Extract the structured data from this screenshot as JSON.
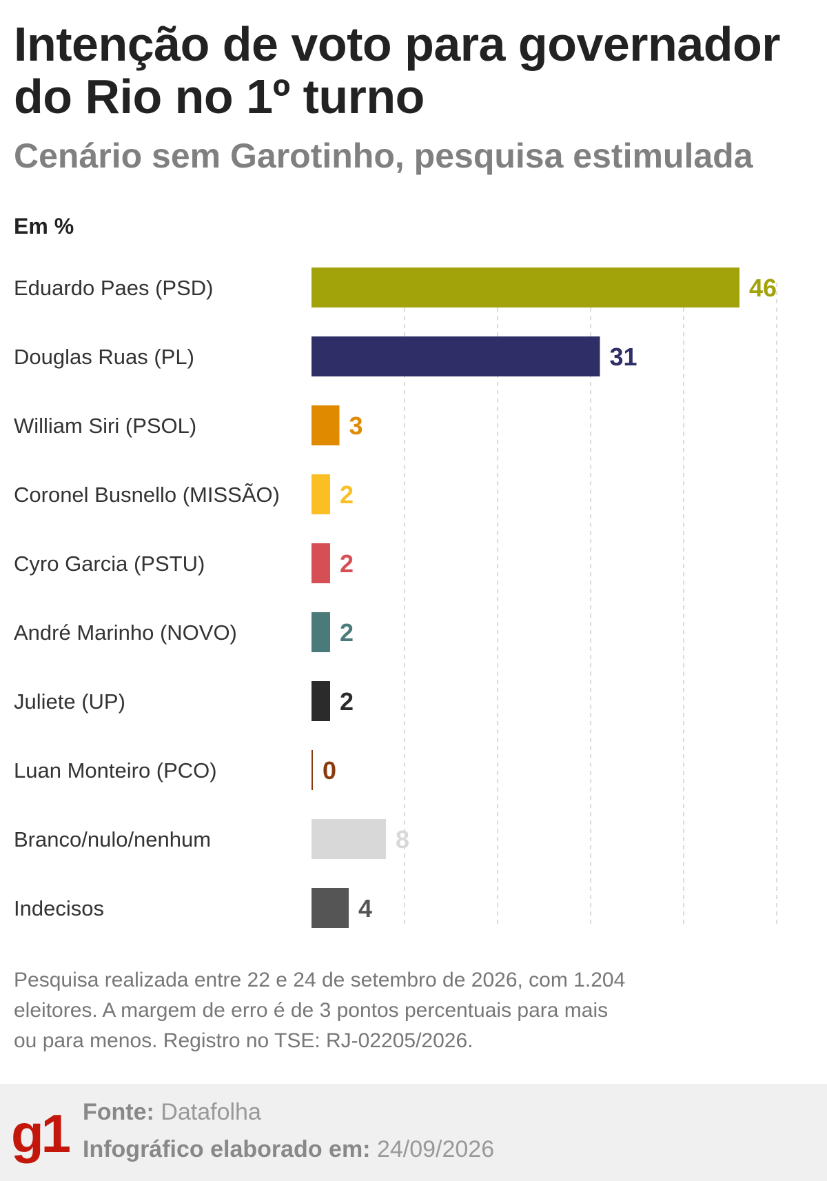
{
  "title": "Intenção de voto para governador do Rio no 1º turno",
  "subtitle": "Cenário sem Garotinho, pesquisa estimulada",
  "unit_label": "Em %",
  "chart_data": {
    "type": "bar",
    "orientation": "horizontal",
    "title": "Intenção de voto para governador do Rio no 1º turno",
    "subtitle": "Cenário sem Garotinho, pesquisa estimulada",
    "ylabel": "Em %",
    "categories": [
      "Eduardo Paes (PSD)",
      "Douglas Ruas (PL)",
      "William Siri (PSOL)",
      "Coronel Busnello (MISSÃO)",
      "Cyro Garcia (PSTU)",
      "André Marinho (NOVO)",
      "Juliete (UP)",
      "Luan Monteiro (PCO)",
      "Branco/nulo/nenhum",
      "Indecisos"
    ],
    "values": [
      46,
      31,
      3,
      2,
      2,
      2,
      2,
      0,
      8,
      4
    ],
    "colors": [
      "#a2a20a",
      "#2f2e66",
      "#e08a00",
      "#fbbf24",
      "#d64f55",
      "#4a7a7a",
      "#2b2b2b",
      "#8a3a0f",
      "#d8d8d8",
      "#555555"
    ],
    "xlim": [
      0,
      50
    ],
    "grid": true,
    "data_labels": true
  },
  "note": "Pesquisa realizada entre 22 e 24 de setembro de 2026, com 1.204 eleitores. A margem de erro é de 3 pontos percentuais para mais ou para menos. Registro no TSE: RJ-02205/2026.",
  "footer": {
    "logo_text": "g1",
    "source_label": "Fonte:",
    "source_value": "Datafolha",
    "date_label": "Infográfico elaborado em:",
    "date_value": "24/09/2026"
  }
}
